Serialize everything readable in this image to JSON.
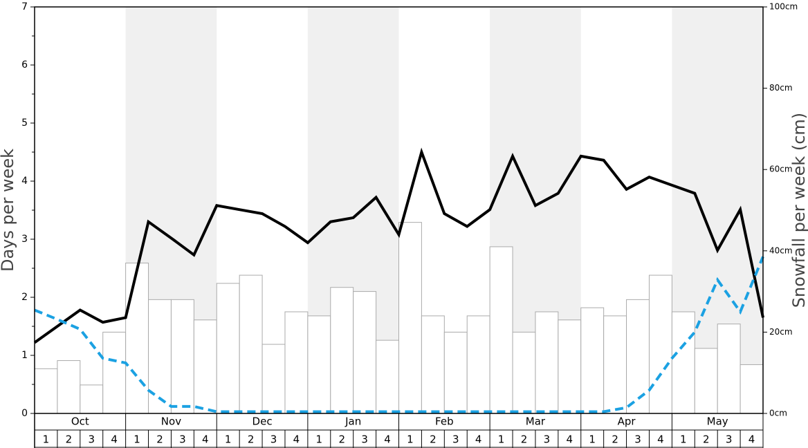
{
  "chart_data": {
    "type": "bar",
    "y_label": "Days per week",
    "y2_label": "Snowfall per week (cm)",
    "months": [
      "Oct",
      "Nov",
      "Dec",
      "Jan",
      "Feb",
      "Mar",
      "Apr",
      "May"
    ],
    "weeks": [
      1,
      2,
      3,
      4
    ],
    "ylim": [
      0,
      7
    ],
    "yticks": [
      0,
      1,
      2,
      3,
      4,
      5,
      6,
      7
    ],
    "y2lim": [
      0,
      100
    ],
    "y2ticks": [
      {
        "value": 0,
        "label": "0cm"
      },
      {
        "value": 20,
        "label": "20cm"
      },
      {
        "value": 40,
        "label": "40cm"
      },
      {
        "value": 60,
        "label": "60cm"
      },
      {
        "value": 80,
        "label": "80cm"
      },
      {
        "value": 100,
        "label": "100cm"
      }
    ],
    "bars": {
      "axis": "y2",
      "color": "#ffffff",
      "values": [
        11,
        13,
        7,
        20,
        37,
        28,
        28,
        23,
        32,
        34,
        17,
        25,
        24,
        31,
        30,
        18,
        47,
        24,
        20,
        24,
        41,
        20,
        25,
        23,
        26,
        24,
        28,
        34,
        25,
        16,
        22,
        12
      ]
    },
    "series": [
      {
        "color": "#000000",
        "dash": false,
        "values": [
          1.22,
          1.5,
          1.78,
          1.57,
          1.65,
          3.3,
          3.02,
          2.73,
          3.58,
          3.51,
          3.44,
          3.22,
          2.94,
          3.3,
          3.37,
          3.72,
          3.08,
          4.5,
          3.44,
          3.22,
          3.51,
          4.43,
          3.58,
          3.79,
          4.43,
          4.36,
          3.86,
          4.07,
          3.93,
          3.79,
          2.81,
          3.51,
          1.65
        ]
      },
      {
        "color": "#1ba1e2",
        "dash": true,
        "values": [
          1.78,
          1.62,
          1.45,
          0.95,
          0.87,
          0.4,
          0.12,
          0.12,
          0.03,
          0.03,
          0.03,
          0.03,
          0.03,
          0.03,
          0.03,
          0.03,
          0.03,
          0.03,
          0.03,
          0.03,
          0.03,
          0.03,
          0.03,
          0.03,
          0.03,
          0.03,
          0.1,
          0.4,
          0.95,
          1.4,
          2.3,
          1.75,
          2.7
        ]
      }
    ]
  }
}
